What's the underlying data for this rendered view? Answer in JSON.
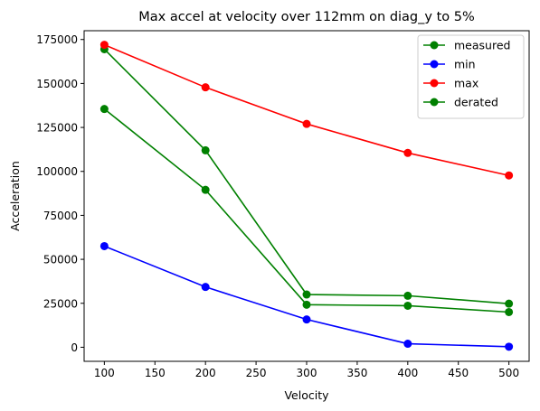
{
  "chart_data": {
    "type": "line",
    "title": "Max accel at velocity over 112mm on diag_y to 5%",
    "xlabel": "Velocity",
    "ylabel": "Acceleration",
    "x": [
      100,
      200,
      300,
      400,
      500
    ],
    "xlim": [
      80,
      520
    ],
    "ylim": [
      -8000,
      180000
    ],
    "xticks": [
      100,
      150,
      200,
      250,
      300,
      350,
      400,
      450,
      500
    ],
    "yticks": [
      0,
      25000,
      50000,
      75000,
      100000,
      125000,
      150000,
      175000
    ],
    "grid": false,
    "legend_position": "top-right",
    "series": [
      {
        "name": "measured",
        "color": "#008000",
        "marker": "circle",
        "values": [
          169500,
          112000,
          30000,
          29300,
          24800
        ]
      },
      {
        "name": "min",
        "color": "#0000ff",
        "marker": "circle",
        "values": [
          57500,
          34300,
          15800,
          2000,
          300
        ]
      },
      {
        "name": "max",
        "color": "#ff0000",
        "marker": "circle",
        "values": [
          172000,
          147800,
          127000,
          110500,
          97700
        ]
      },
      {
        "name": "derated",
        "color": "#008000",
        "marker": "circle",
        "values": [
          135500,
          89500,
          24200,
          23600,
          20000
        ]
      }
    ]
  }
}
